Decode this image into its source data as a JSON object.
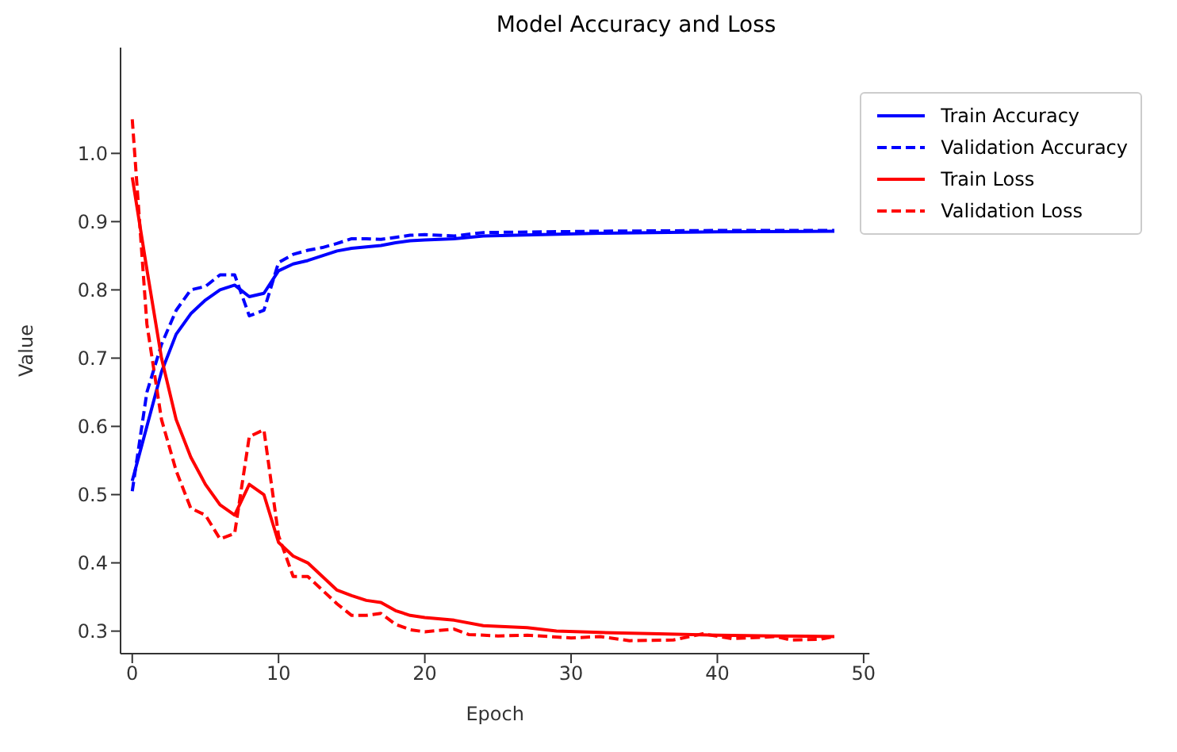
{
  "chart_data": {
    "type": "line",
    "title": "Model Accuracy and Loss",
    "xlabel": "Epoch",
    "ylabel": "Value",
    "xlim": [
      -0.8,
      50.4
    ],
    "ylim": [
      0.267,
      1.155
    ],
    "xticks": [
      0,
      10,
      20,
      30,
      40,
      50
    ],
    "yticks": [
      0.3,
      0.4,
      0.5,
      0.6,
      0.7,
      0.8,
      0.9,
      {
        "value": 1,
        "label": "1.0"
      }
    ],
    "grid": false,
    "legend": "top right",
    "series": [
      {
        "name": "Train Accuracy",
        "color": "#0000ff",
        "line_style": "solid",
        "x": [
          0,
          1,
          2,
          3,
          4,
          5,
          6,
          7,
          8,
          9,
          10,
          11,
          12,
          13,
          14,
          15,
          16,
          17,
          18,
          19,
          20,
          22,
          24,
          28,
          32,
          40,
          48
        ],
        "values": [
          0.52,
          0.6,
          0.68,
          0.735,
          0.765,
          0.785,
          0.8,
          0.807,
          0.79,
          0.795,
          0.828,
          0.838,
          0.843,
          0.85,
          0.857,
          0.861,
          0.863,
          0.865,
          0.869,
          0.872,
          0.873,
          0.875,
          0.879,
          0.881,
          0.883,
          0.885,
          0.886
        ]
      },
      {
        "name": "Validation Accuracy",
        "color": "#0000ff",
        "line_style": "dashed",
        "x": [
          0,
          1,
          2,
          3,
          4,
          5,
          6,
          7,
          8,
          9,
          10,
          11,
          12,
          13,
          14,
          15,
          16,
          17,
          18,
          19,
          20,
          22,
          24,
          28,
          32,
          40,
          48
        ],
        "values": [
          0.505,
          0.65,
          0.72,
          0.77,
          0.8,
          0.805,
          0.822,
          0.822,
          0.762,
          0.77,
          0.84,
          0.852,
          0.858,
          0.862,
          0.868,
          0.875,
          0.875,
          0.874,
          0.877,
          0.88,
          0.881,
          0.879,
          0.884,
          0.885,
          0.886,
          0.887,
          0.887
        ]
      },
      {
        "name": "Train Loss",
        "color": "#ff0000",
        "line_style": "solid",
        "x": [
          0,
          1,
          2,
          3,
          4,
          5,
          6,
          7,
          8,
          9,
          10,
          11,
          12,
          13,
          14,
          15,
          16,
          17,
          18,
          19,
          20,
          22,
          24,
          27,
          29,
          32,
          36,
          40,
          44,
          48
        ],
        "values": [
          0.965,
          0.83,
          0.7,
          0.61,
          0.555,
          0.515,
          0.485,
          0.47,
          0.515,
          0.5,
          0.43,
          0.41,
          0.4,
          0.38,
          0.36,
          0.352,
          0.345,
          0.342,
          0.33,
          0.323,
          0.32,
          0.316,
          0.308,
          0.305,
          0.3,
          0.298,
          0.296,
          0.294,
          0.293,
          0.292
        ]
      },
      {
        "name": "Validation Loss",
        "color": "#ff0000",
        "line_style": "dashed",
        "x": [
          0,
          1,
          2,
          3,
          4,
          5,
          6,
          7,
          8,
          9,
          10,
          11,
          12,
          13,
          14,
          15,
          16,
          17,
          18,
          19,
          20,
          22,
          23,
          25,
          27,
          30,
          32,
          34,
          37,
          39,
          41,
          44,
          45,
          47,
          48
        ],
        "values": [
          1.05,
          0.75,
          0.61,
          0.535,
          0.48,
          0.47,
          0.435,
          0.443,
          0.585,
          0.595,
          0.44,
          0.38,
          0.38,
          0.36,
          0.34,
          0.323,
          0.323,
          0.326,
          0.31,
          0.302,
          0.299,
          0.303,
          0.295,
          0.293,
          0.294,
          0.29,
          0.292,
          0.286,
          0.287,
          0.296,
          0.289,
          0.292,
          0.287,
          0.288,
          0.292
        ]
      }
    ]
  }
}
